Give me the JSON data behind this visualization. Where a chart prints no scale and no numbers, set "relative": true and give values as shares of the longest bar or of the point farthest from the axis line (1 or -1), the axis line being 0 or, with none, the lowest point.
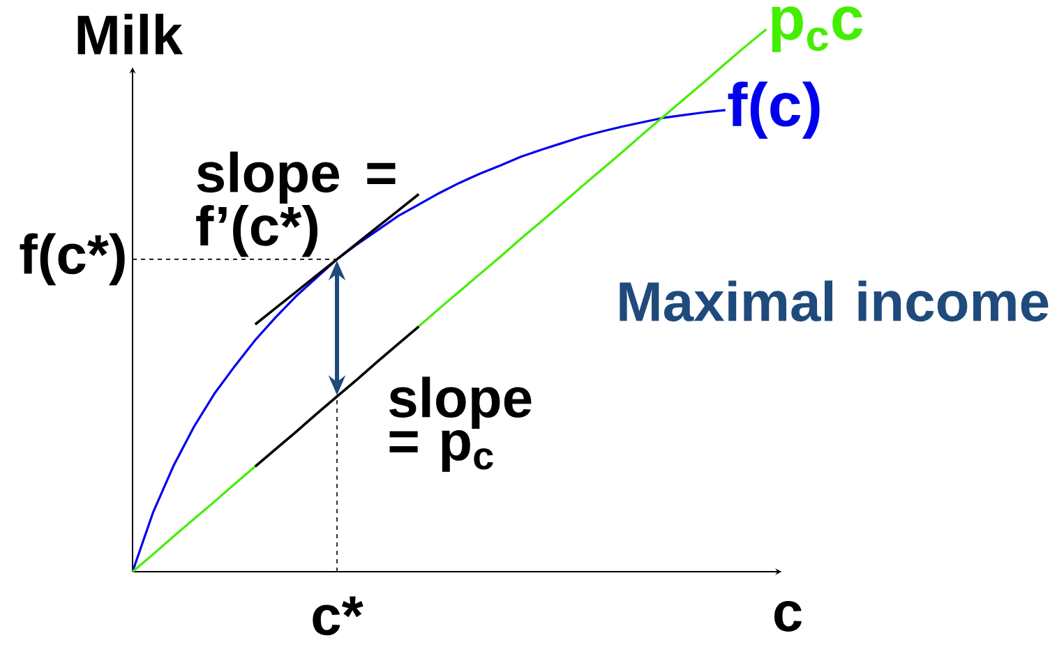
{
  "chart_data": {
    "type": "line",
    "relative": true,
    "xlabel": "c",
    "ylabel": "Milk",
    "categories": [
      null,
      null,
      null,
      null,
      null,
      null,
      null,
      null,
      null,
      null,
      null,
      null,
      null,
      null,
      null,
      null,
      null,
      null,
      null,
      null,
      null,
      null,
      null,
      null,
      null,
      null,
      null,
      null,
      null,
      null,
      null,
      null
    ],
    "series": [
      {
        "name": "f(c)",
        "color": "#0000ee",
        "values": [
          0,
          0.109,
          0.195,
          0.267,
          0.328,
          0.379,
          0.427,
          0.469,
          0.508,
          0.542,
          0.576,
          0.604,
          0.63,
          0.656,
          0.677,
          0.698,
          0.717,
          0.734,
          0.749,
          0.765,
          0.778,
          0.79,
          0.802,
          0.812,
          0.821,
          0.829,
          0.837,
          0.842,
          0.847,
          0.851,
          null,
          null
        ]
      },
      {
        "name": "p$_{c}$c",
        "color": "#44ee00",
        "values": [
          0,
          0.032,
          0.065,
          0.097,
          0.129,
          0.162,
          0.194,
          0.226,
          0.258,
          0.291,
          0.323,
          0.355,
          0.388,
          0.42,
          0.452,
          0.485,
          0.517,
          0.549,
          0.581,
          0.614,
          0.646,
          0.678,
          0.711,
          0.743,
          0.775,
          0.808,
          0.84,
          0.872,
          0.904,
          0.937,
          0.969,
          1.0
        ]
      },
      {
        "color": "#000000",
        "values": [
          null,
          null,
          null,
          null,
          null,
          null,
          0.456,
          0.486,
          0.516,
          0.546,
          0.576,
          0.606,
          0.636,
          0.666,
          0.696,
          null,
          null,
          null,
          null,
          null,
          null,
          null,
          null,
          null,
          null,
          null,
          null,
          null,
          null,
          null,
          null,
          null
        ]
      },
      {
        "color": "#000000",
        "values": [
          null,
          null,
          null,
          null,
          null,
          null,
          0.194,
          0.226,
          0.258,
          0.291,
          0.323,
          0.355,
          0.388,
          0.42,
          0.452,
          null,
          null,
          null,
          null,
          null,
          null,
          null,
          null,
          null,
          null,
          null,
          null,
          null,
          null,
          null,
          null,
          null
        ]
      }
    ],
    "ref_lines": [
      {
        "axis": "y",
        "value": 0.576,
        "label": "f(c*)",
        "color": "#000000",
        "line_style": "dashed"
      }
    ],
    "annotations": [
      "slope = f’(c*)",
      "slope = p$_{c}$",
      "Maximal income",
      "c*"
    ],
    "marker": "none",
    "line_style": "solid"
  }
}
